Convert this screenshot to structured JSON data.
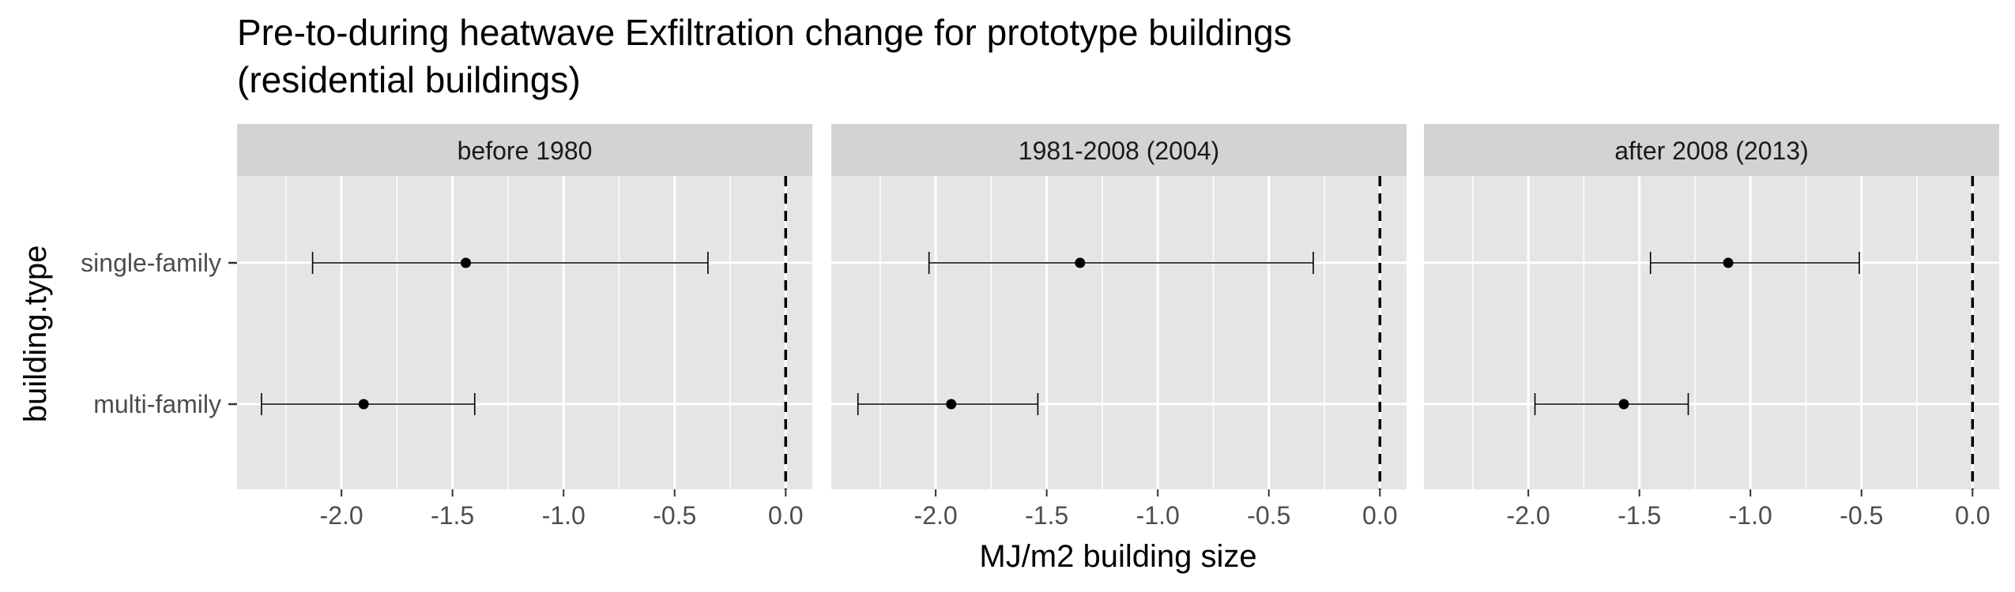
{
  "chart_data": {
    "type": "errorbar",
    "title_line1": "Pre-to-during heatwave Exfiltration change for prototype buildings",
    "title_line2": "(residential buildings)",
    "xlabel": "MJ/m2 building size",
    "ylabel": "building.type",
    "categories": [
      "single-family",
      "multi-family"
    ],
    "xlim": [
      -2.47,
      0.12
    ],
    "x_ticks": [
      -2.0,
      -1.5,
      -1.0,
      -0.5,
      0.0
    ],
    "x_tick_labels": [
      "-2.0",
      "-1.5",
      "-1.0",
      "-0.5",
      "0.0"
    ],
    "reference_line": 0,
    "grid": true,
    "panels": [
      {
        "label": "before 1980",
        "points": [
          {
            "category": "single-family",
            "x": -1.44,
            "low": -2.13,
            "high": -0.35
          },
          {
            "category": "multi-family",
            "x": -1.9,
            "low": -2.36,
            "high": -1.4
          }
        ]
      },
      {
        "label": "1981-2008 (2004)",
        "points": [
          {
            "category": "single-family",
            "x": -1.35,
            "low": -2.03,
            "high": -0.3
          },
          {
            "category": "multi-family",
            "x": -1.93,
            "low": -2.35,
            "high": -1.54
          }
        ]
      },
      {
        "label": "after 2008 (2013)",
        "points": [
          {
            "category": "single-family",
            "x": -1.1,
            "low": -1.45,
            "high": -0.51
          },
          {
            "category": "multi-family",
            "x": -1.57,
            "low": -1.97,
            "high": -1.28
          }
        ]
      }
    ],
    "colors": {
      "panel_background": "#e5e5e5",
      "strip_background": "#d3d3d3",
      "grid": "#ffffff",
      "ink": "#000000",
      "tick_text": "#4d4d4d",
      "strip_text": "#1a1a1a"
    }
  }
}
